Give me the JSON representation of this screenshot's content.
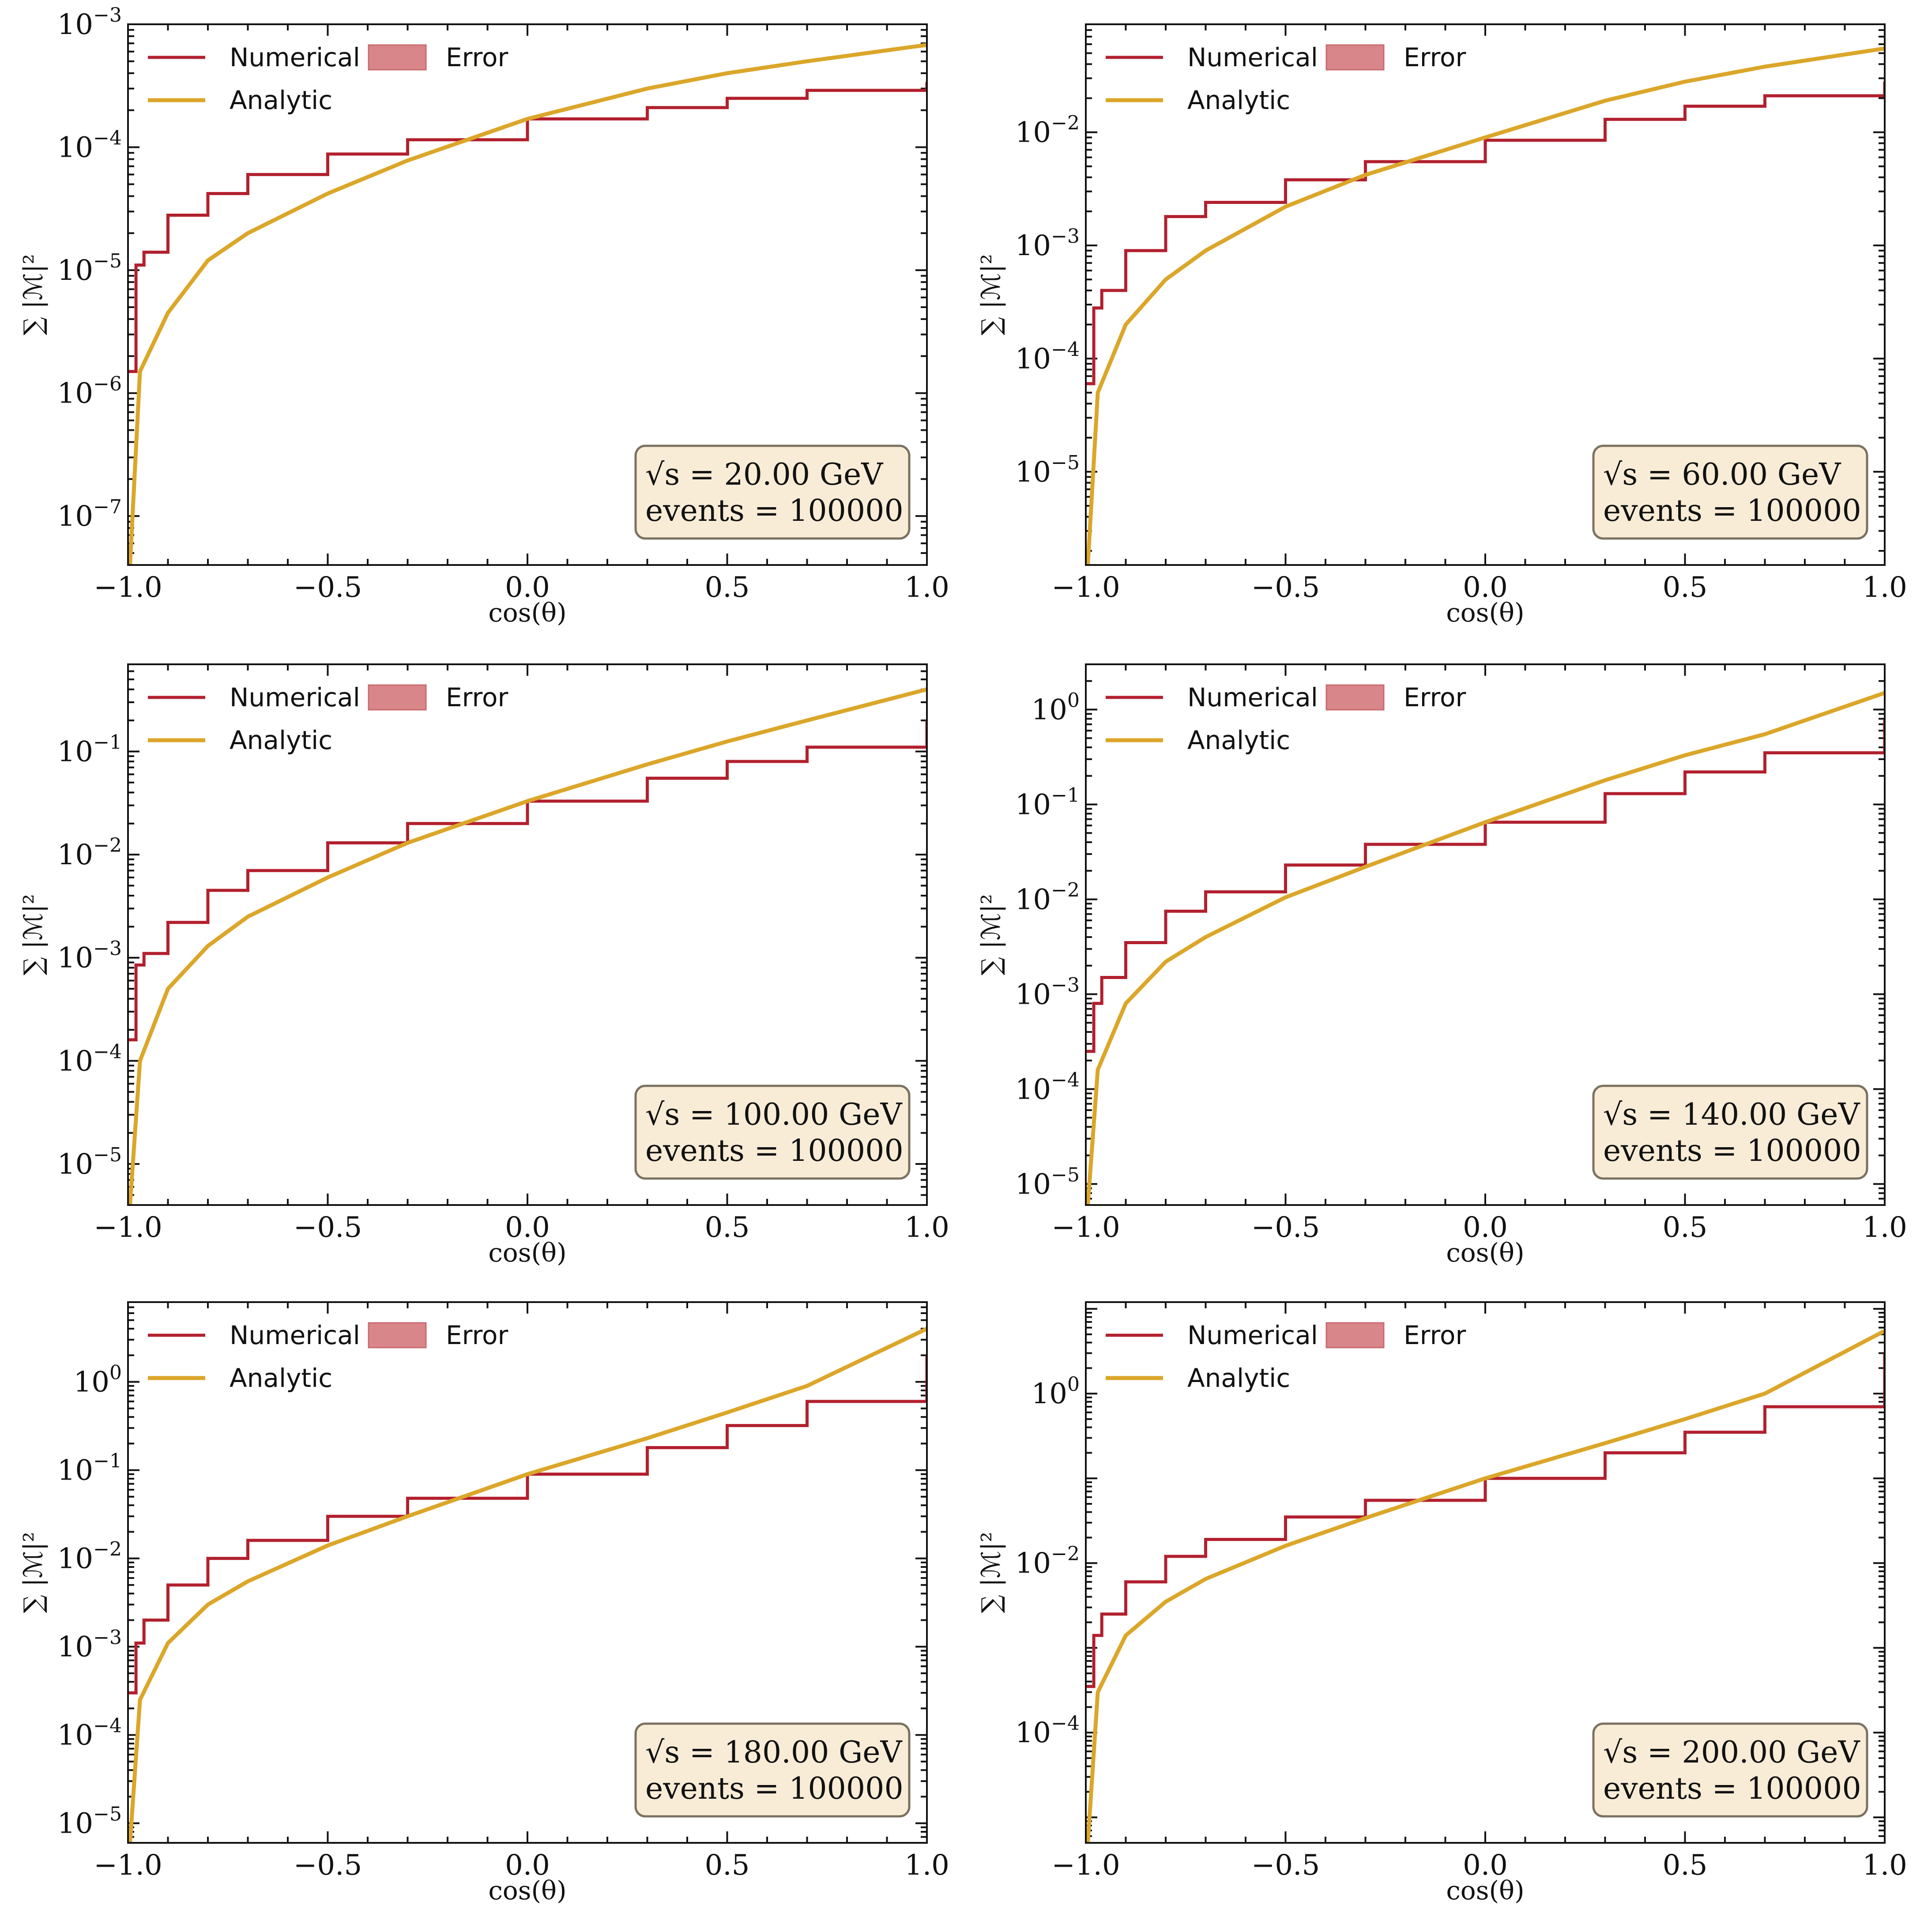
{
  "figure": {
    "legend": {
      "numerical": "Numerical",
      "error": "Error",
      "analytic": "Analytic"
    },
    "colors": {
      "numerical": "#b2202e",
      "analytic": "#dba629",
      "error_fill": "#d9868a",
      "info_bg": "#f8ecd6",
      "info_border": "#7a7160"
    },
    "xlabel": "cos(θ)",
    "ylabel": "∑ |ℳ|²"
  },
  "chart_data": [
    {
      "type": "line",
      "info": [
        "√s = 20.00 GeV",
        "events = 100000"
      ],
      "xlim": [
        -1.0,
        1.0
      ],
      "xticks": [
        -1.0,
        -0.5,
        0.0,
        0.5,
        1.0
      ],
      "xtick_labels": [
        "−1.0",
        "−0.5",
        "0.0",
        "0.5",
        "1.0"
      ],
      "y_scale": "log",
      "ylim": [
        4e-08,
        0.001
      ],
      "ytick_labels": [
        {
          "base": "10",
          "exp": "−7",
          "value": 1e-07
        },
        {
          "base": "10",
          "exp": "−6",
          "value": 1e-06
        },
        {
          "base": "10",
          "exp": "−5",
          "value": 1e-05
        },
        {
          "base": "10",
          "exp": "−4",
          "value": 0.0001
        },
        {
          "base": "10",
          "exp": "−3",
          "value": 0.001
        }
      ],
      "series": [
        {
          "name": "Numerical",
          "style": "step",
          "x": [
            -1.0,
            -0.98,
            -0.96,
            -0.9,
            -0.8,
            -0.7,
            -0.5,
            -0.3,
            0.0,
            0.3,
            0.5,
            0.7,
            1.0
          ],
          "y": [
            1.5e-06,
            1.1e-05,
            1.4e-05,
            2.8e-05,
            4.2e-05,
            6e-05,
            8.8e-05,
            0.000115,
            0.00017,
            0.00021,
            0.00025,
            0.00029,
            0.00034
          ]
        },
        {
          "name": "Analytic",
          "style": "line",
          "x": [
            -0.995,
            -0.97,
            -0.9,
            -0.8,
            -0.7,
            -0.5,
            -0.3,
            0.0,
            0.3,
            0.5,
            0.7,
            1.0
          ],
          "y": [
            4e-08,
            1.5e-06,
            4.5e-06,
            1.2e-05,
            2e-05,
            4.2e-05,
            7.8e-05,
            0.00017,
            0.0003,
            0.0004,
            0.0005,
            0.00068
          ]
        }
      ]
    },
    {
      "type": "line",
      "info": [
        "√s = 60.00 GeV",
        "events = 100000"
      ],
      "xlim": [
        -1.0,
        1.0
      ],
      "xticks": [
        -1.0,
        -0.5,
        0.0,
        0.5,
        1.0
      ],
      "xtick_labels": [
        "−1.0",
        "−0.5",
        "0.0",
        "0.5",
        "1.0"
      ],
      "y_scale": "log",
      "ylim": [
        1.5e-06,
        0.09
      ],
      "ytick_labels": [
        {
          "base": "10",
          "exp": "−5",
          "value": 1e-05
        },
        {
          "base": "10",
          "exp": "−4",
          "value": 0.0001
        },
        {
          "base": "10",
          "exp": "−3",
          "value": 0.001
        },
        {
          "base": "10",
          "exp": "−2",
          "value": 0.01
        }
      ],
      "series": [
        {
          "name": "Numerical",
          "style": "step",
          "x": [
            -1.0,
            -0.98,
            -0.96,
            -0.9,
            -0.8,
            -0.7,
            -0.5,
            -0.3,
            0.0,
            0.3,
            0.5,
            0.7,
            1.0
          ],
          "y": [
            6e-05,
            0.00028,
            0.0004,
            0.0009,
            0.0018,
            0.0024,
            0.0038,
            0.0055,
            0.0085,
            0.013,
            0.017,
            0.021,
            0.028
          ]
        },
        {
          "name": "Analytic",
          "style": "line",
          "x": [
            -0.995,
            -0.97,
            -0.9,
            -0.8,
            -0.7,
            -0.5,
            -0.3,
            0.0,
            0.3,
            0.5,
            0.7,
            1.0
          ],
          "y": [
            1.5e-06,
            5e-05,
            0.0002,
            0.0005,
            0.0009,
            0.0022,
            0.0042,
            0.009,
            0.019,
            0.028,
            0.038,
            0.055
          ]
        }
      ]
    },
    {
      "type": "line",
      "info": [
        "√s = 100.00 GeV",
        "events = 100000"
      ],
      "xlim": [
        -1.0,
        1.0
      ],
      "xticks": [
        -1.0,
        -0.5,
        0.0,
        0.5,
        1.0
      ],
      "xtick_labels": [
        "−1.0",
        "−0.5",
        "0.0",
        "0.5",
        "1.0"
      ],
      "y_scale": "log",
      "ylim": [
        4e-06,
        0.7
      ],
      "ytick_labels": [
        {
          "base": "10",
          "exp": "−5",
          "value": 1e-05
        },
        {
          "base": "10",
          "exp": "−4",
          "value": 0.0001
        },
        {
          "base": "10",
          "exp": "−3",
          "value": 0.001
        },
        {
          "base": "10",
          "exp": "−2",
          "value": 0.01
        },
        {
          "base": "10",
          "exp": "−1",
          "value": 0.1
        }
      ],
      "series": [
        {
          "name": "Numerical",
          "style": "step",
          "x": [
            -1.0,
            -0.98,
            -0.96,
            -0.9,
            -0.8,
            -0.7,
            -0.5,
            -0.3,
            0.0,
            0.3,
            0.5,
            0.7,
            1.0
          ],
          "y": [
            0.00016,
            0.00085,
            0.0011,
            0.0022,
            0.0045,
            0.007,
            0.013,
            0.02,
            0.033,
            0.055,
            0.08,
            0.11,
            0.2
          ]
        },
        {
          "name": "Analytic",
          "style": "line",
          "x": [
            -0.995,
            -0.97,
            -0.9,
            -0.8,
            -0.7,
            -0.5,
            -0.3,
            0.0,
            0.3,
            0.5,
            0.7,
            1.0
          ],
          "y": [
            4e-06,
            0.0001,
            0.0005,
            0.0013,
            0.0025,
            0.006,
            0.013,
            0.033,
            0.075,
            0.125,
            0.2,
            0.4
          ]
        }
      ]
    },
    {
      "type": "line",
      "info": [
        "√s = 140.00 GeV",
        "events = 100000"
      ],
      "xlim": [
        -1.0,
        1.0
      ],
      "xticks": [
        -1.0,
        -0.5,
        0.0,
        0.5,
        1.0
      ],
      "xtick_labels": [
        "−1.0",
        "−0.5",
        "0.0",
        "0.5",
        "1.0"
      ],
      "y_scale": "log",
      "ylim": [
        6e-06,
        3.0
      ],
      "ytick_labels": [
        {
          "base": "10",
          "exp": "−5",
          "value": 1e-05
        },
        {
          "base": "10",
          "exp": "−4",
          "value": 0.0001
        },
        {
          "base": "10",
          "exp": "−3",
          "value": 0.001
        },
        {
          "base": "10",
          "exp": "−2",
          "value": 0.01
        },
        {
          "base": "10",
          "exp": "−1",
          "value": 0.1
        },
        {
          "base": "10",
          "exp": "0",
          "value": 1
        }
      ],
      "series": [
        {
          "name": "Numerical",
          "style": "step",
          "x": [
            -1.0,
            -0.98,
            -0.96,
            -0.9,
            -0.8,
            -0.7,
            -0.5,
            -0.3,
            0.0,
            0.3,
            0.5,
            0.7,
            1.0
          ],
          "y": [
            0.00025,
            0.0008,
            0.0015,
            0.0035,
            0.0075,
            0.012,
            0.023,
            0.038,
            0.065,
            0.13,
            0.22,
            0.35,
            0.8
          ]
        },
        {
          "name": "Analytic",
          "style": "line",
          "x": [
            -0.995,
            -0.97,
            -0.9,
            -0.8,
            -0.7,
            -0.5,
            -0.3,
            0.0,
            0.3,
            0.5,
            0.7,
            1.0
          ],
          "y": [
            6e-06,
            0.00016,
            0.0008,
            0.0022,
            0.004,
            0.0105,
            0.022,
            0.065,
            0.18,
            0.33,
            0.55,
            1.5
          ]
        }
      ]
    },
    {
      "type": "line",
      "info": [
        "√s = 180.00 GeV",
        "events = 100000"
      ],
      "xlim": [
        -1.0,
        1.0
      ],
      "xticks": [
        -1.0,
        -0.5,
        0.0,
        0.5,
        1.0
      ],
      "xtick_labels": [
        "−1.0",
        "−0.5",
        "0.0",
        "0.5",
        "1.0"
      ],
      "y_scale": "log",
      "ylim": [
        6e-06,
        8.0
      ],
      "ytick_labels": [
        {
          "base": "10",
          "exp": "−5",
          "value": 1e-05
        },
        {
          "base": "10",
          "exp": "−4",
          "value": 0.0001
        },
        {
          "base": "10",
          "exp": "−3",
          "value": 0.001
        },
        {
          "base": "10",
          "exp": "−2",
          "value": 0.01
        },
        {
          "base": "10",
          "exp": "−1",
          "value": 0.1
        },
        {
          "base": "10",
          "exp": "0",
          "value": 1
        }
      ],
      "series": [
        {
          "name": "Numerical",
          "style": "step",
          "x": [
            -1.0,
            -0.98,
            -0.96,
            -0.9,
            -0.8,
            -0.7,
            -0.5,
            -0.3,
            0.0,
            0.3,
            0.5,
            0.7,
            1.0
          ],
          "y": [
            0.0003,
            0.0011,
            0.002,
            0.005,
            0.01,
            0.016,
            0.03,
            0.048,
            0.09,
            0.18,
            0.32,
            0.6,
            2.0
          ]
        },
        {
          "name": "Analytic",
          "style": "line",
          "x": [
            -0.995,
            -0.97,
            -0.9,
            -0.8,
            -0.7,
            -0.5,
            -0.3,
            0.0,
            0.3,
            0.5,
            0.7,
            1.0
          ],
          "y": [
            6e-06,
            0.00025,
            0.0011,
            0.003,
            0.0055,
            0.014,
            0.03,
            0.09,
            0.23,
            0.45,
            0.9,
            4.0
          ]
        }
      ]
    },
    {
      "type": "line",
      "info": [
        "√s = 200.00 GeV",
        "events = 100000"
      ],
      "xlim": [
        -1.0,
        1.0
      ],
      "xticks": [
        -1.0,
        -0.5,
        0.0,
        0.5,
        1.0
      ],
      "xtick_labels": [
        "−1.0",
        "−0.5",
        "0.0",
        "0.5",
        "1.0"
      ],
      "y_scale": "log",
      "ylim": [
        5e-06,
        12.0
      ],
      "ytick_labels": [
        {
          "base": "10",
          "exp": "−4",
          "value": 0.0001
        },
        {
          "base": "10",
          "exp": "−2",
          "value": 0.01
        },
        {
          "base": "10",
          "exp": "0",
          "value": 1
        }
      ],
      "series": [
        {
          "name": "Numerical",
          "style": "step",
          "x": [
            -1.0,
            -0.98,
            -0.96,
            -0.9,
            -0.8,
            -0.7,
            -0.5,
            -0.3,
            0.0,
            0.3,
            0.5,
            0.7,
            1.0
          ],
          "y": [
            0.00035,
            0.0014,
            0.0025,
            0.006,
            0.012,
            0.019,
            0.035,
            0.055,
            0.1,
            0.2,
            0.35,
            0.7,
            3.0
          ]
        },
        {
          "name": "Analytic",
          "style": "line",
          "x": [
            -0.995,
            -0.97,
            -0.9,
            -0.8,
            -0.7,
            -0.5,
            -0.3,
            0.0,
            0.3,
            0.5,
            0.7,
            1.0
          ],
          "y": [
            5e-06,
            0.0003,
            0.0014,
            0.0035,
            0.0065,
            0.016,
            0.034,
            0.1,
            0.26,
            0.5,
            1.0,
            5.5
          ]
        }
      ]
    }
  ]
}
